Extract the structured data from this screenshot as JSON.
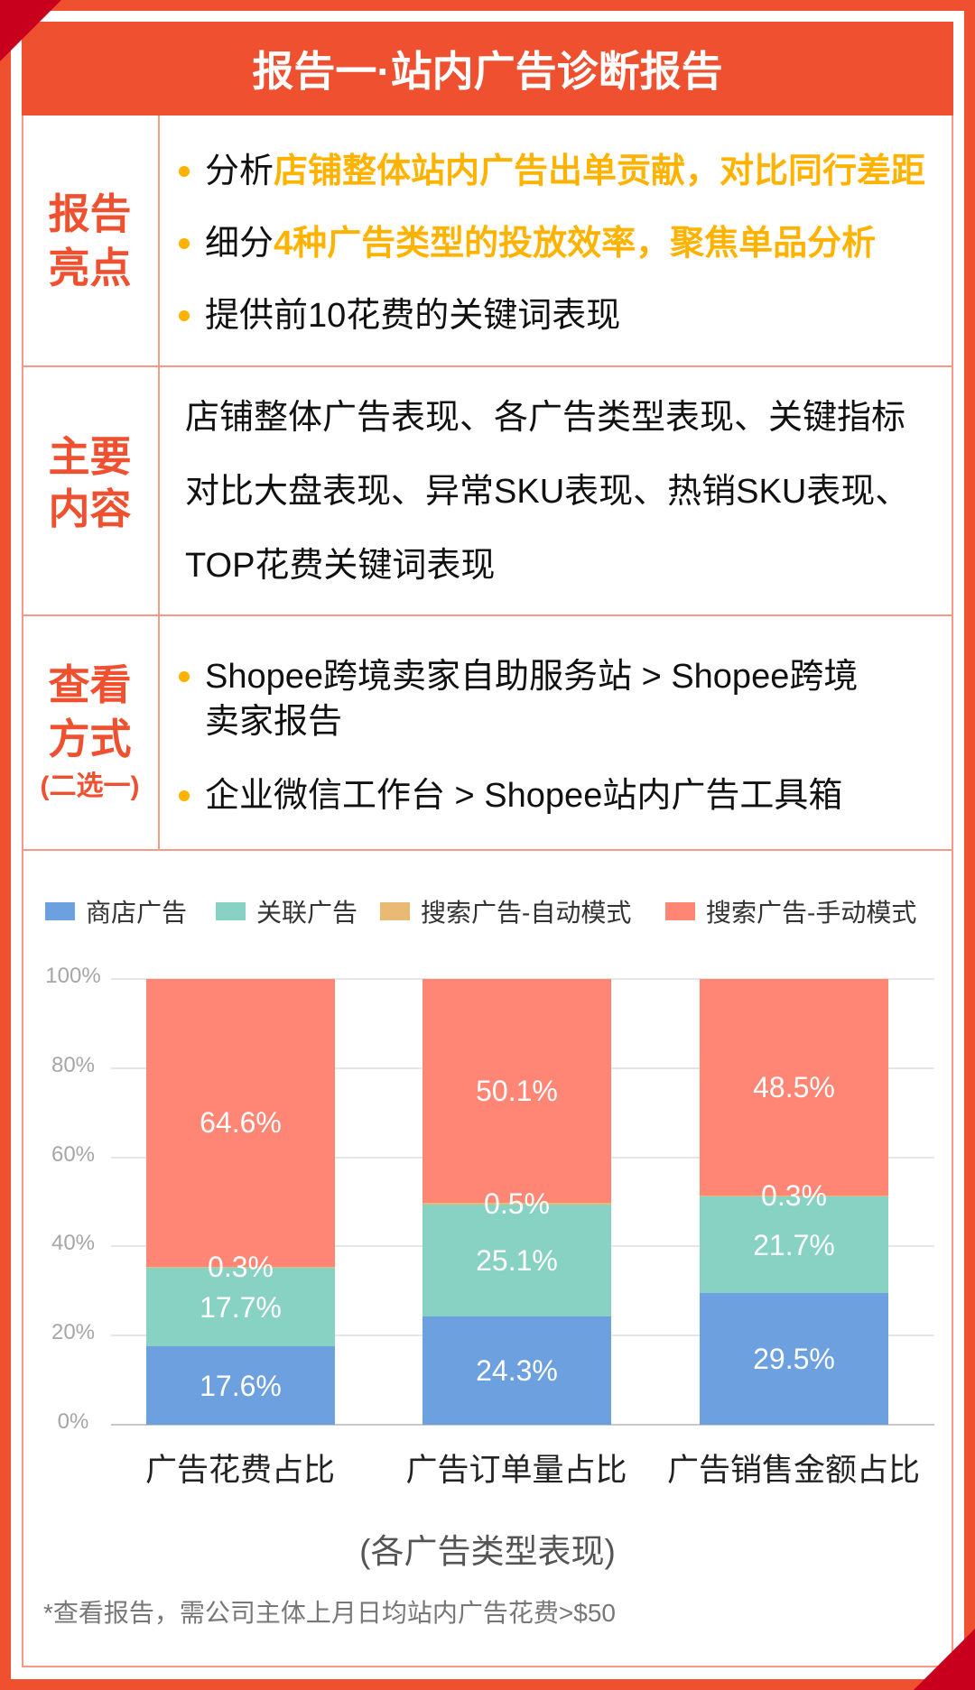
{
  "theme": {
    "primary": "#EE5030",
    "accent-dark": "#C8001E",
    "highlight": "#FFB300",
    "border": "#F59A86"
  },
  "header": {
    "title": "报告一·站内广告诊断报告"
  },
  "sections": {
    "highlights": {
      "label_lines": [
        "报告",
        "亮点"
      ],
      "items": [
        {
          "prefix": "分析",
          "emphasis": "店铺整体站内广告出单贡献，对比同行差距"
        },
        {
          "prefix": "细分",
          "emphasis": "4种广告类型的投放效率，聚焦单品分析"
        },
        {
          "prefix": "提供前10花费的关键词表现",
          "emphasis": ""
        }
      ]
    },
    "contents": {
      "label_lines": [
        "主要",
        "内容"
      ],
      "lines": [
        "店铺整体广告表现、各广告类型表现、关键指标",
        "对比大盘表现、异常SKU表现、热销SKU表现、",
        "TOP花费关键词表现"
      ]
    },
    "access": {
      "label_lines": [
        "查看",
        "方式"
      ],
      "label_note": "(二选一)",
      "items": [
        {
          "lines": [
            "Shopee跨境卖家自助服务站 > Shopee跨境",
            "卖家报告"
          ]
        },
        {
          "lines": [
            "企业微信工作台 > Shopee站内广告工具箱"
          ]
        }
      ]
    }
  },
  "chart_data": {
    "type": "bar",
    "stacked": true,
    "title": "(各广告类型表现)",
    "categories": [
      "广告花费占比",
      "广告订单量占比",
      "广告销售金额占比"
    ],
    "series": [
      {
        "name": "商店广告",
        "color": "#6CA0DF",
        "values": [
          17.6,
          24.3,
          29.5
        ],
        "labels": [
          "17.6%",
          "24.3%",
          "29.5%"
        ]
      },
      {
        "name": "关联广告",
        "color": "#88D2C4",
        "values": [
          17.7,
          25.1,
          21.7
        ],
        "labels": [
          "17.7%",
          "25.1%",
          "21.7%"
        ]
      },
      {
        "name": "搜索广告-自动模式",
        "color": "#E9BA74",
        "values": [
          0.3,
          0.5,
          0.3
        ],
        "labels": [
          "0.3%",
          "0.5%",
          "0.3%"
        ]
      },
      {
        "name": "搜索广告-手动模式",
        "color": "#FF8675",
        "values": [
          64.6,
          50.1,
          48.5
        ],
        "labels": [
          "64.6%",
          "50.1%",
          "48.5%"
        ]
      }
    ],
    "yaxis": {
      "ticks": [
        "0%",
        "20%",
        "40%",
        "60%",
        "80%",
        "100%"
      ]
    },
    "xlabel": "",
    "ylabel": "",
    "ylim": [
      0,
      100
    ],
    "grid": true,
    "legend_position": "top"
  },
  "footnote": "*查看报告，需公司主体上月日均站内广告花费>$50"
}
